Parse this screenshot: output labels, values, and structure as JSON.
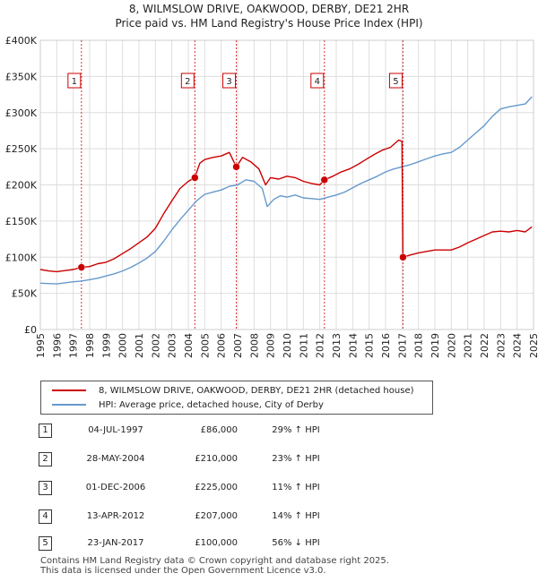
{
  "title": {
    "line1": "8, WILMSLOW DRIVE, OAKWOOD, DERBY, DE21 2HR",
    "line2": "Price paid vs. HM Land Registry's House Price Index (HPI)"
  },
  "colors": {
    "price_line": "#cc0000",
    "hpi_line": "#6699cc",
    "marker": "#cc0000",
    "event_line": "#cc0000",
    "grid": "#dddddd"
  },
  "legend": {
    "price_label": "8, WILMSLOW DRIVE, OAKWOOD, DERBY, DE21 2HR (detached house)",
    "hpi_label": "HPI: Average price, detached house, City of Derby"
  },
  "events": [
    {
      "num": "1",
      "date": "04-JUL-1997",
      "price": "£86,000",
      "hpi": "29% ↑ HPI"
    },
    {
      "num": "2",
      "date": "28-MAY-2004",
      "price": "£210,000",
      "hpi": "23% ↑ HPI"
    },
    {
      "num": "3",
      "date": "01-DEC-2006",
      "price": "£225,000",
      "hpi": "11% ↑ HPI"
    },
    {
      "num": "4",
      "date": "13-APR-2012",
      "price": "£207,000",
      "hpi": "14% ↑ HPI"
    },
    {
      "num": "5",
      "date": "23-JAN-2017",
      "price": "£100,000",
      "hpi": "56% ↓ HPI"
    }
  ],
  "footer": {
    "line1": "Contains HM Land Registry data © Crown copyright and database right 2025.",
    "line2": "This data is licensed under the Open Government Licence v3.0."
  },
  "chart_data": {
    "type": "line",
    "x_range": [
      1995,
      2025
    ],
    "ylim": [
      0,
      400000
    ],
    "y_ticks": [
      0,
      50000,
      100000,
      150000,
      200000,
      250000,
      300000,
      350000,
      400000
    ],
    "y_tick_labels": [
      "£0",
      "£50K",
      "£100K",
      "£150K",
      "£200K",
      "£250K",
      "£300K",
      "£350K",
      "£400K"
    ],
    "x_ticks": [
      "1995",
      "1996",
      "1997",
      "1998",
      "1999",
      "2000",
      "2001",
      "2002",
      "2003",
      "2004",
      "2005",
      "2006",
      "2007",
      "2008",
      "2009",
      "2010",
      "2011",
      "2012",
      "2013",
      "2014",
      "2015",
      "2016",
      "2017",
      "2018",
      "2019",
      "2020",
      "2021",
      "2022",
      "2023",
      "2024",
      "2025"
    ],
    "grid": true,
    "sales": [
      {
        "label": "1",
        "x": 1997.5,
        "y": 86000
      },
      {
        "label": "2",
        "x": 2004.4,
        "y": 210000
      },
      {
        "label": "3",
        "x": 2006.92,
        "y": 225000
      },
      {
        "label": "4",
        "x": 2012.28,
        "y": 207000
      },
      {
        "label": "5",
        "x": 2017.06,
        "y": 100000
      }
    ],
    "series": [
      {
        "name": "8, WILMSLOW DRIVE, OAKWOOD, DERBY, DE21 2HR (detached house)",
        "points": [
          [
            1995,
            83000
          ],
          [
            1995.5,
            81000
          ],
          [
            1996,
            80000
          ],
          [
            1996.5,
            81500
          ],
          [
            1997,
            83000
          ],
          [
            1997.5,
            86000
          ],
          [
            1998,
            87000
          ],
          [
            1998.5,
            91000
          ],
          [
            1999,
            93000
          ],
          [
            1999.5,
            98000
          ],
          [
            2000,
            105000
          ],
          [
            2000.5,
            112000
          ],
          [
            2001,
            120000
          ],
          [
            2001.5,
            128000
          ],
          [
            2002,
            140000
          ],
          [
            2002.5,
            160000
          ],
          [
            2003,
            178000
          ],
          [
            2003.5,
            195000
          ],
          [
            2004,
            205000
          ],
          [
            2004.4,
            210000
          ],
          [
            2004.7,
            230000
          ],
          [
            2005,
            235000
          ],
          [
            2005.5,
            238000
          ],
          [
            2006,
            240000
          ],
          [
            2006.5,
            245000
          ],
          [
            2006.92,
            225000
          ],
          [
            2007.3,
            238000
          ],
          [
            2007.8,
            232000
          ],
          [
            2008.3,
            222000
          ],
          [
            2008.7,
            200000
          ],
          [
            2009,
            210000
          ],
          [
            2009.5,
            208000
          ],
          [
            2010,
            212000
          ],
          [
            2010.5,
            210000
          ],
          [
            2011,
            205000
          ],
          [
            2011.5,
            202000
          ],
          [
            2012,
            200000
          ],
          [
            2012.28,
            207000
          ],
          [
            2012.8,
            212000
          ],
          [
            2013.3,
            218000
          ],
          [
            2013.8,
            222000
          ],
          [
            2014.3,
            228000
          ],
          [
            2014.8,
            235000
          ],
          [
            2015.3,
            242000
          ],
          [
            2015.8,
            248000
          ],
          [
            2016.3,
            252000
          ],
          [
            2016.8,
            262000
          ],
          [
            2017.0,
            260000
          ],
          [
            2017.06,
            100000
          ],
          [
            2017.5,
            103000
          ],
          [
            2018,
            106000
          ],
          [
            2018.5,
            108000
          ],
          [
            2019,
            110000
          ],
          [
            2019.5,
            110000
          ],
          [
            2020,
            110000
          ],
          [
            2020.5,
            114000
          ],
          [
            2021,
            120000
          ],
          [
            2021.5,
            125000
          ],
          [
            2022,
            130000
          ],
          [
            2022.5,
            135000
          ],
          [
            2023,
            136000
          ],
          [
            2023.5,
            135000
          ],
          [
            2024,
            137000
          ],
          [
            2024.5,
            135000
          ],
          [
            2024.9,
            142000
          ]
        ]
      },
      {
        "name": "HPI: Average price, detached house, City of Derby",
        "points": [
          [
            1995,
            64000
          ],
          [
            1995.5,
            63500
          ],
          [
            1996,
            63000
          ],
          [
            1996.5,
            64500
          ],
          [
            1997,
            66000
          ],
          [
            1997.5,
            67000
          ],
          [
            1998,
            69000
          ],
          [
            1998.5,
            71000
          ],
          [
            1999,
            74000
          ],
          [
            1999.5,
            77000
          ],
          [
            2000,
            81000
          ],
          [
            2000.5,
            86000
          ],
          [
            2001,
            92000
          ],
          [
            2001.5,
            99000
          ],
          [
            2002,
            108000
          ],
          [
            2002.5,
            122000
          ],
          [
            2003,
            138000
          ],
          [
            2003.5,
            152000
          ],
          [
            2004,
            165000
          ],
          [
            2004.5,
            178000
          ],
          [
            2005,
            187000
          ],
          [
            2005.5,
            190000
          ],
          [
            2006,
            193000
          ],
          [
            2006.5,
            198000
          ],
          [
            2007,
            200000
          ],
          [
            2007.5,
            207000
          ],
          [
            2008,
            205000
          ],
          [
            2008.5,
            195000
          ],
          [
            2008.8,
            170000
          ],
          [
            2009.2,
            180000
          ],
          [
            2009.6,
            185000
          ],
          [
            2010,
            183000
          ],
          [
            2010.5,
            186000
          ],
          [
            2011,
            182000
          ],
          [
            2011.5,
            181000
          ],
          [
            2012,
            180000
          ],
          [
            2012.5,
            183000
          ],
          [
            2013,
            186000
          ],
          [
            2013.5,
            190000
          ],
          [
            2014,
            196000
          ],
          [
            2014.5,
            202000
          ],
          [
            2015,
            207000
          ],
          [
            2015.5,
            212000
          ],
          [
            2016,
            218000
          ],
          [
            2016.5,
            222000
          ],
          [
            2017,
            225000
          ],
          [
            2017.5,
            228000
          ],
          [
            2018,
            232000
          ],
          [
            2018.5,
            236000
          ],
          [
            2019,
            240000
          ],
          [
            2019.5,
            243000
          ],
          [
            2020,
            245000
          ],
          [
            2020.5,
            252000
          ],
          [
            2021,
            262000
          ],
          [
            2021.5,
            272000
          ],
          [
            2022,
            282000
          ],
          [
            2022.5,
            295000
          ],
          [
            2023,
            305000
          ],
          [
            2023.5,
            308000
          ],
          [
            2024,
            310000
          ],
          [
            2024.5,
            312000
          ],
          [
            2024.9,
            322000
          ]
        ]
      }
    ]
  }
}
